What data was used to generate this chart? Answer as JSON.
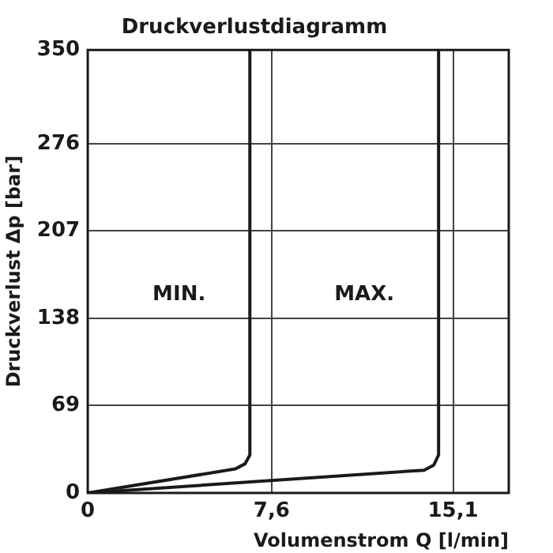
{
  "chart_data": {
    "type": "line",
    "title": "Druckverlustdiagramm",
    "xlabel": "Volumenstrom Q [l/min]",
    "ylabel": "Druckverlust Δp [bar]",
    "series": [
      {
        "name": "MIN.",
        "color": "#1a1a1a",
        "x": [
          0,
          6.1,
          6.5,
          6.7,
          6.7
        ],
        "values": [
          0,
          19,
          23,
          30,
          350
        ]
      },
      {
        "name": "MAX.",
        "color": "#1a1a1a",
        "x": [
          0,
          13.9,
          14.3,
          14.5,
          14.5
        ],
        "values": [
          0,
          18,
          22,
          30,
          350
        ]
      }
    ],
    "xlim": [
      0,
      17.4
    ],
    "xticks": [
      0,
      {
        "value": 7.6,
        "label": "7,6"
      },
      {
        "value": 15.1,
        "label": "15,1"
      }
    ],
    "ylim": [
      0,
      350
    ],
    "yticks": [
      0,
      69,
      138,
      207,
      276,
      350
    ],
    "grid": true,
    "marker": "none",
    "line_style": "solid"
  }
}
